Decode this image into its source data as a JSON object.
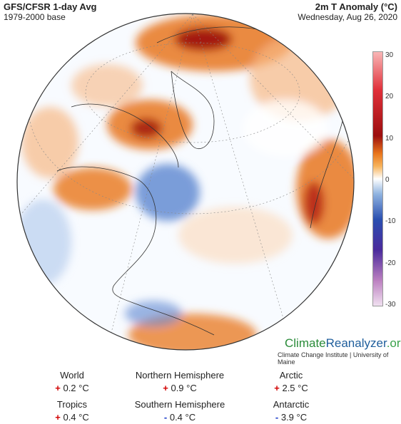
{
  "header": {
    "title": "GFS/CFSR 1-day Avg",
    "subtitle": "1979-2000 base",
    "right_title": "2m T Anomaly (°C)",
    "date": "Wednesday, Aug 26, 2020"
  },
  "colorbar": {
    "ticks": [
      "30",
      "20",
      "10",
      "0",
      "-10",
      "-20",
      "-30"
    ]
  },
  "branding": {
    "part1": "Climate",
    "part2": "Reanalyzer",
    "part3": ".org",
    "institute": "Climate Change Institute | University of Maine"
  },
  "stats": [
    {
      "label": "World",
      "sign": "+",
      "value": "0.2 °C"
    },
    {
      "label": "Northern Hemisphere",
      "sign": "+",
      "value": "0.9 °C"
    },
    {
      "label": "Arctic",
      "sign": "+",
      "value": "2.5 °C"
    },
    {
      "label": "Tropics",
      "sign": "+",
      "value": "0.4 °C"
    },
    {
      "label": "Southern Hemisphere",
      "sign": "-",
      "value": "0.4 °C"
    },
    {
      "label": "Antarctic",
      "sign": "-",
      "value": "3.9 °C"
    }
  ],
  "colors": {
    "warm": "#e8751c",
    "hot": "#9c0e0e",
    "cool": "#5a86d0",
    "ocean": "#ffffff"
  }
}
